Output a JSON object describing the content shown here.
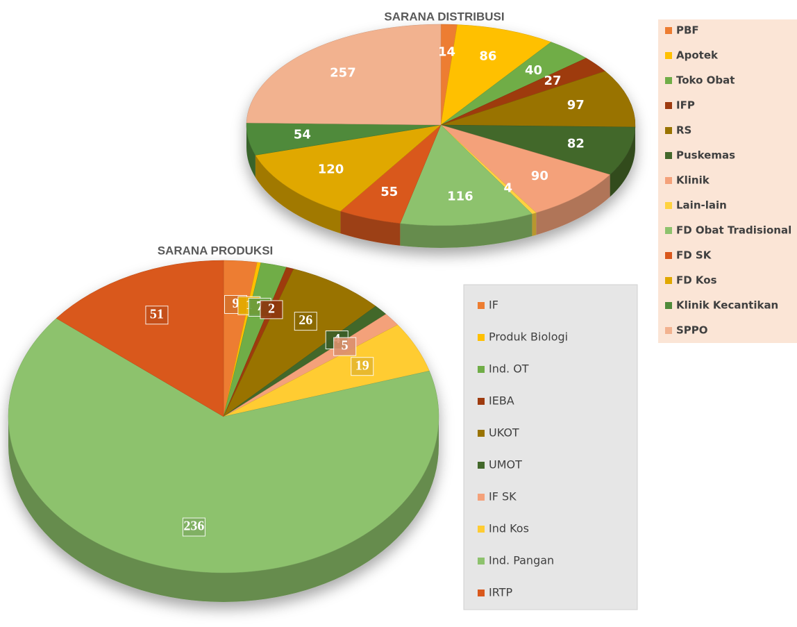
{
  "chart_data": [
    {
      "type": "pie",
      "title": "SARANA DISTRIBUSI",
      "categories": [
        "PBF",
        "Apotek",
        "Toko Obat",
        "IFP",
        "RS",
        "Puskemas",
        "Klinik",
        "Lain-lain",
        "FD Obat Tradisional",
        "FD SK",
        "FD Kos",
        "Klinik Kecantikan",
        "SPPO"
      ],
      "values": [
        14,
        86,
        40,
        27,
        97,
        82,
        90,
        4,
        116,
        55,
        120,
        54,
        257
      ],
      "colors": [
        "#ed7d31",
        "#ffc000",
        "#70ad47",
        "#9e3b0f",
        "#997300",
        "#43682b",
        "#f4a17a",
        "#ffd23f",
        "#8dc26d",
        "#d9581c",
        "#e0a800",
        "#4f8a3a",
        "#f2b28f"
      ]
    },
    {
      "type": "pie",
      "title": "SARANA PRODUKSI",
      "categories": [
        "IF",
        "Produk Biologi",
        "Ind. OT",
        "IEBA",
        "UKOT",
        "UMOT",
        "IF SK",
        "Ind Kos",
        "Ind. Pangan",
        "IRTP"
      ],
      "values": [
        9,
        1,
        7,
        2,
        26,
        4,
        5,
        19,
        236,
        51
      ],
      "colors": [
        "#ed7d31",
        "#ffc000",
        "#70ad47",
        "#9e3b0f",
        "#997300",
        "#43682b",
        "#f4a17a",
        "#ffcc33",
        "#8dc26d",
        "#d9581c"
      ]
    }
  ]
}
